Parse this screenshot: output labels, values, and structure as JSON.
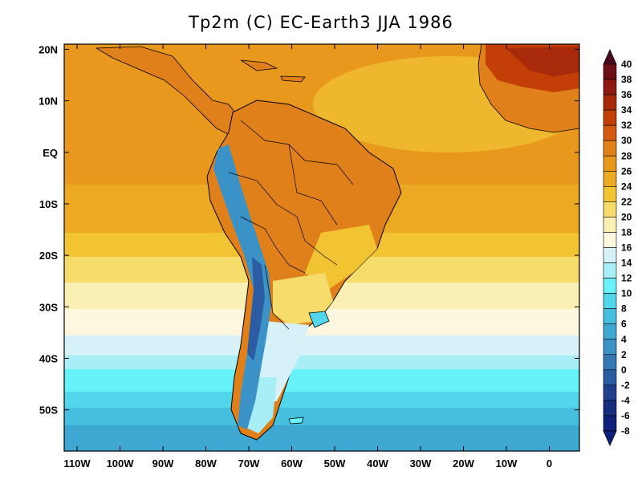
{
  "title": "Tp2m (C)   EC-Earth3 JJA 1986",
  "map": {
    "lon_range": [
      -113,
      7
    ],
    "lat_range": [
      -58,
      21
    ],
    "x_ticks": [
      {
        "lon": -110,
        "label": "110W"
      },
      {
        "lon": -100,
        "label": "100W"
      },
      {
        "lon": -90,
        "label": "90W"
      },
      {
        "lon": -80,
        "label": "80W"
      },
      {
        "lon": -70,
        "label": "70W"
      },
      {
        "lon": -60,
        "label": "60W"
      },
      {
        "lon": -50,
        "label": "50W"
      },
      {
        "lon": -40,
        "label": "40W"
      },
      {
        "lon": -30,
        "label": "30W"
      },
      {
        "lon": -20,
        "label": "20W"
      },
      {
        "lon": -10,
        "label": "10W"
      },
      {
        "lon": 0,
        "label": "0"
      }
    ],
    "y_ticks": [
      {
        "lat": 20,
        "label": "20N"
      },
      {
        "lat": 10,
        "label": "10N"
      },
      {
        "lat": 0,
        "label": "EQ"
      },
      {
        "lat": -10,
        "label": "10S"
      },
      {
        "lat": -20,
        "label": "20S"
      },
      {
        "lat": -30,
        "label": "30S"
      },
      {
        "lat": -40,
        "label": "40S"
      },
      {
        "lat": -50,
        "label": "50S"
      }
    ]
  },
  "colorbar": {
    "levels": [
      "40",
      "38",
      "36",
      "34",
      "32",
      "30",
      "28",
      "26",
      "24",
      "22",
      "20",
      "18",
      "16",
      "14",
      "12",
      "10",
      "8",
      "6",
      "4",
      "2",
      "0",
      "-2",
      "-4",
      "-6",
      "-8"
    ],
    "colors": [
      "#4a0a1c",
      "#6e0f16",
      "#8c1a10",
      "#a82a0a",
      "#c43e08",
      "#d45a10",
      "#e0801a",
      "#e8981c",
      "#eca924",
      "#f2c434",
      "#f6dc6a",
      "#faf0b4",
      "#fdf7e0",
      "#d6f2f8",
      "#a8eef6",
      "#66f2f8",
      "#52d6ec",
      "#46bede",
      "#3ea8d2",
      "#3a92c6",
      "#3478b6",
      "#2c5ca4",
      "#20408e",
      "#182c80",
      "#10207a"
    ]
  }
}
